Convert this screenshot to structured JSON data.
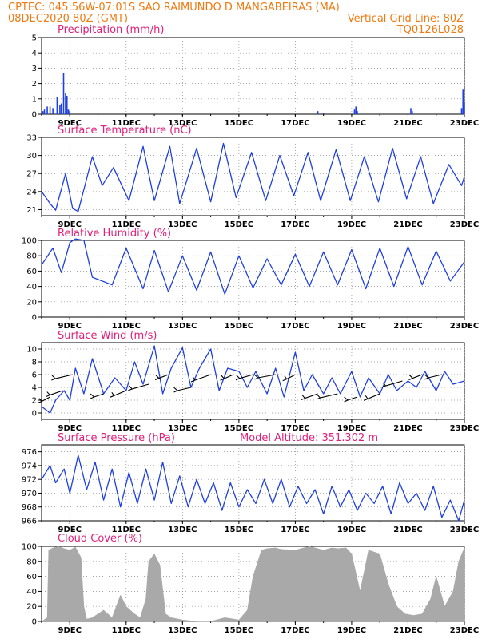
{
  "header": {
    "line1_left": "CPTEC:   045:56W-07:01S  SAO RAIMUNDO D MANGABEIRAS (MA)",
    "line2_left": "08DEC2020 80Z (GMT)",
    "line2_right": "Vertical Grid Line: 80Z",
    "line3_right": "TQ0126L028"
  },
  "colors": {
    "header": "#f07a10",
    "title": "#e0207a",
    "series": "#1f3fe0",
    "cloud": "#a9a9a9",
    "wind_arrow": "#000000"
  },
  "x_axis": {
    "tick_labels": [
      "9DEC",
      "11DEC",
      "13DEC",
      "15DEC",
      "17DEC",
      "19DEC",
      "21DEC",
      "23DEC"
    ],
    "tick_days": [
      1,
      3,
      5,
      7,
      9,
      11,
      13,
      15
    ],
    "range_days": [
      0,
      15
    ]
  },
  "chart_data": [
    {
      "type": "bar",
      "title": "Precipitation (mm/h)",
      "ylim": [
        0,
        5
      ],
      "yticks": [
        0,
        1,
        2,
        3,
        4,
        5
      ],
      "x": [
        0.05,
        0.1,
        0.2,
        0.3,
        0.4,
        0.55,
        0.65,
        0.7,
        0.78,
        0.85,
        0.9,
        0.95,
        1.0,
        9.8,
        10.0,
        11.1,
        11.15,
        11.2,
        13.1,
        13.15,
        14.9,
        14.95,
        15.0
      ],
      "values": [
        0.2,
        0.3,
        0.5,
        0.5,
        0.4,
        1.1,
        0.6,
        0.7,
        2.7,
        1.4,
        1.2,
        0.3,
        0.2,
        0.2,
        0.1,
        0.3,
        0.5,
        0.2,
        0.4,
        0.2,
        0.4,
        1.6,
        0.8
      ]
    },
    {
      "type": "line",
      "title": "Surface Temperature (nC)",
      "ylim": [
        20,
        33
      ],
      "yticks": [
        21,
        24,
        27,
        30,
        33
      ],
      "x": [
        0,
        0.3,
        0.5,
        0.85,
        1.1,
        1.3,
        1.8,
        2.15,
        2.55,
        3.1,
        3.6,
        4.0,
        4.55,
        4.9,
        5.5,
        6.0,
        6.45,
        6.9,
        7.45,
        7.95,
        8.45,
        8.95,
        9.45,
        9.9,
        10.45,
        10.95,
        11.45,
        11.95,
        12.45,
        12.95,
        13.45,
        13.9,
        14.45,
        14.9,
        15.0
      ],
      "values": [
        24.0,
        22.0,
        20.9,
        27.0,
        21.2,
        20.7,
        29.8,
        25.0,
        28.0,
        22.5,
        31.5,
        22.5,
        31.5,
        22.0,
        31.2,
        22.3,
        32.0,
        23.0,
        30.5,
        22.5,
        30.0,
        23.3,
        30.5,
        22.5,
        31.0,
        22.5,
        29.8,
        22.3,
        31.2,
        22.8,
        29.8,
        22.0,
        28.5,
        25.0,
        26.5
      ]
    },
    {
      "type": "line",
      "title": "Relative Humidity (%)",
      "ylim": [
        0,
        100
      ],
      "yticks": [
        0,
        20,
        40,
        60,
        80,
        100
      ],
      "x": [
        0,
        0.4,
        0.7,
        1.0,
        1.2,
        1.5,
        1.8,
        2.5,
        3.0,
        3.6,
        4.0,
        4.5,
        5.0,
        5.5,
        6.0,
        6.5,
        7.0,
        7.5,
        8.0,
        8.5,
        9.0,
        9.5,
        10.0,
        10.5,
        11.0,
        11.5,
        12.0,
        12.5,
        13.0,
        13.5,
        14.0,
        14.5,
        15.0
      ],
      "values": [
        68,
        90,
        58,
        97,
        102,
        100,
        52,
        42,
        90,
        37,
        87,
        33,
        80,
        35,
        85,
        30,
        80,
        38,
        76,
        42,
        82,
        40,
        85,
        42,
        88,
        37,
        90,
        40,
        92,
        42,
        86,
        47,
        72
      ]
    },
    {
      "type": "line",
      "title": "Surface Wind (m/s)",
      "ylim": [
        -1,
        11
      ],
      "yticks": [
        0,
        2,
        4,
        6,
        8,
        10
      ],
      "x": [
        0,
        0.3,
        0.5,
        0.8,
        1.0,
        1.2,
        1.5,
        1.8,
        2.2,
        2.6,
        3.0,
        3.3,
        3.6,
        4.0,
        4.3,
        4.6,
        5.0,
        5.3,
        5.6,
        6.0,
        6.3,
        6.6,
        7.0,
        7.3,
        7.6,
        8.0,
        8.3,
        8.6,
        9.0,
        9.3,
        9.6,
        10.0,
        10.3,
        10.6,
        11.0,
        11.3,
        11.6,
        12.0,
        12.3,
        12.6,
        13.0,
        13.3,
        13.6,
        14.0,
        14.3,
        14.6,
        15.0
      ],
      "values": [
        1.0,
        0.0,
        2.0,
        3.5,
        2.0,
        7.0,
        3.0,
        8.5,
        3.0,
        5.5,
        3.5,
        8.0,
        4.5,
        10.5,
        3.0,
        7.0,
        10.2,
        4.0,
        7.0,
        10.0,
        3.5,
        7.0,
        6.5,
        4.0,
        6.5,
        3.0,
        7.0,
        2.5,
        9.5,
        3.5,
        6.0,
        3.0,
        5.5,
        3.0,
        6.5,
        2.5,
        5.5,
        3.0,
        6.0,
        3.5,
        5.0,
        4.0,
        6.5,
        3.5,
        6.5,
        4.5,
        5.0
      ],
      "arrows_x": [
        0.3,
        0.75,
        1.1,
        2.2,
        3.0,
        3.8,
        4.5,
        5.3,
        6.0,
        6.8,
        7.5,
        8.3,
        9.0,
        9.8,
        10.5,
        11.2,
        12.0,
        12.8,
        13.5,
        14.2
      ]
    },
    {
      "type": "line",
      "title": "Surface Pressure (hPa)",
      "annotation": "Model Altitude: 351.302 m",
      "ylim": [
        966,
        977
      ],
      "yticks": [
        966,
        968,
        970,
        972,
        974,
        976
      ],
      "x": [
        0,
        0.3,
        0.5,
        0.8,
        1.0,
        1.3,
        1.6,
        1.9,
        2.2,
        2.5,
        2.8,
        3.1,
        3.4,
        3.7,
        4.0,
        4.3,
        4.6,
        4.9,
        5.2,
        5.5,
        5.8,
        6.1,
        6.4,
        6.7,
        7.0,
        7.3,
        7.6,
        7.9,
        8.2,
        8.5,
        8.8,
        9.1,
        9.4,
        9.7,
        10.0,
        10.3,
        10.6,
        10.9,
        11.2,
        11.5,
        11.8,
        12.1,
        12.4,
        12.7,
        13.0,
        13.3,
        13.6,
        13.9,
        14.2,
        14.5,
        14.8,
        15.0
      ],
      "values": [
        972.0,
        974.0,
        971.5,
        973.5,
        970.0,
        975.5,
        970.5,
        974.5,
        969.0,
        973.5,
        968.0,
        973.0,
        968.5,
        973.5,
        969.0,
        974.5,
        968.5,
        972.5,
        968.0,
        972.0,
        968.5,
        971.5,
        967.5,
        971.5,
        968.0,
        970.5,
        968.5,
        972.0,
        968.5,
        972.0,
        968.0,
        971.0,
        968.5,
        970.5,
        967.0,
        971.0,
        968.0,
        970.5,
        967.5,
        970.0,
        968.5,
        971.0,
        967.0,
        971.5,
        968.5,
        970.0,
        967.5,
        971.0,
        966.5,
        969.0,
        966.0,
        969.0
      ]
    },
    {
      "type": "area",
      "title": "Cloud Cover (%)",
      "ylim": [
        0,
        100
      ],
      "yticks": [
        0,
        20,
        40,
        60,
        80,
        100
      ],
      "x": [
        0,
        0.2,
        0.25,
        0.4,
        0.6,
        0.8,
        1.0,
        1.2,
        1.4,
        1.5,
        1.6,
        1.8,
        2.0,
        2.2,
        2.5,
        2.8,
        3.0,
        3.3,
        3.5,
        3.7,
        3.8,
        4.0,
        4.2,
        4.4,
        4.6,
        5.0,
        5.5,
        6.0,
        6.5,
        7.0,
        7.3,
        7.5,
        7.8,
        8.0,
        8.3,
        8.5,
        9.0,
        9.5,
        10.0,
        10.3,
        10.5,
        10.8,
        11.0,
        11.3,
        11.6,
        12.0,
        12.3,
        12.6,
        12.9,
        13.2,
        13.5,
        13.8,
        14.0,
        14.3,
        14.6,
        14.8,
        15.0
      ],
      "values": [
        0,
        5,
        95,
        98,
        100,
        97,
        95,
        99,
        85,
        20,
        3,
        5,
        10,
        15,
        5,
        35,
        20,
        10,
        5,
        30,
        80,
        90,
        75,
        10,
        5,
        2,
        0,
        0,
        5,
        2,
        15,
        60,
        95,
        97,
        98,
        96,
        95,
        100,
        95,
        98,
        97,
        98,
        90,
        40,
        95,
        90,
        50,
        20,
        10,
        8,
        10,
        30,
        60,
        20,
        40,
        80,
        98
      ]
    }
  ]
}
